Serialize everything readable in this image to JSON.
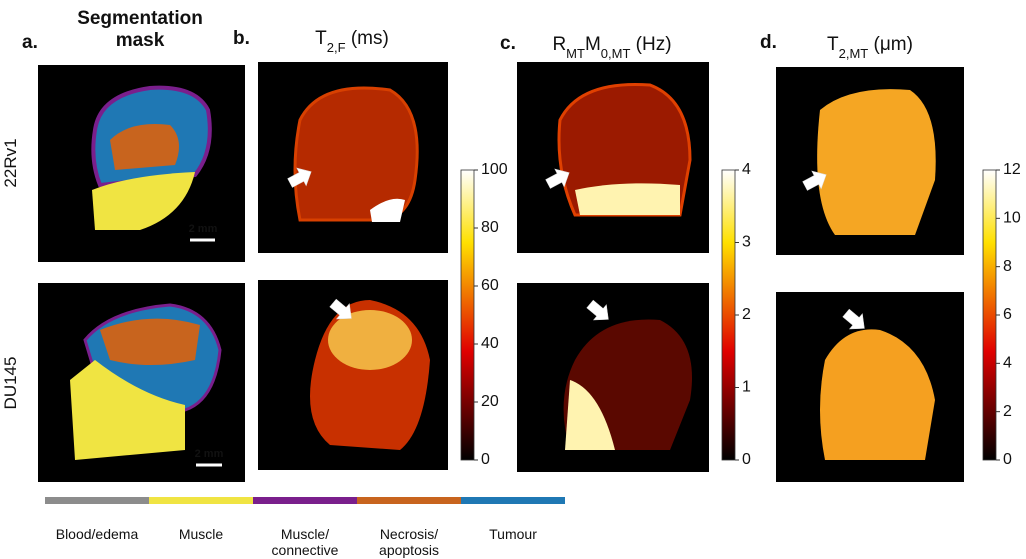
{
  "rows": [
    "22Rv1",
    "DU145"
  ],
  "panels": [
    {
      "label": "a.",
      "title": [
        {
          "text": "Segmentation"
        },
        {
          "text": "mask"
        }
      ],
      "scale_bars": [
        "2 mm",
        "2 mm"
      ]
    },
    {
      "label": "b.",
      "title": [
        {
          "text": "T"
        },
        {
          "text": "2,F",
          "sub": true
        },
        {
          "text": " (ms)"
        }
      ],
      "colorbar": {
        "lim": [
          0,
          100
        ],
        "ticks": [
          0,
          20,
          40,
          60,
          80,
          100
        ]
      }
    },
    {
      "label": "c.",
      "title": [
        {
          "text": "R"
        },
        {
          "text": "MT",
          "sub": true
        },
        {
          "text": "M"
        },
        {
          "text": "0,MT",
          "sub": true
        },
        {
          "text": " (Hz)"
        }
      ],
      "colorbar": {
        "lim": [
          0,
          4
        ],
        "ticks": [
          0,
          1,
          2,
          3,
          4
        ]
      }
    },
    {
      "label": "d.",
      "title": [
        {
          "text": "T"
        },
        {
          "text": "2,MT",
          "sub": true
        },
        {
          "text": " (μm)"
        }
      ],
      "colorbar": {
        "lim": [
          0,
          12
        ],
        "ticks": [
          0,
          2,
          4,
          6,
          8,
          10,
          12
        ]
      }
    }
  ],
  "legend": [
    {
      "label": [
        "Blood/edema"
      ],
      "color": "#8c8c8c"
    },
    {
      "label": [
        "Muscle"
      ],
      "color": "#f0e442"
    },
    {
      "label": [
        "Muscle/",
        "connective"
      ],
      "color": "#7a1f8c"
    },
    {
      "label": [
        "Necrosis/",
        "apoptosis"
      ],
      "color": "#c8641e"
    },
    {
      "label": [
        "Tumour"
      ],
      "color": "#1f78b4"
    }
  ]
}
